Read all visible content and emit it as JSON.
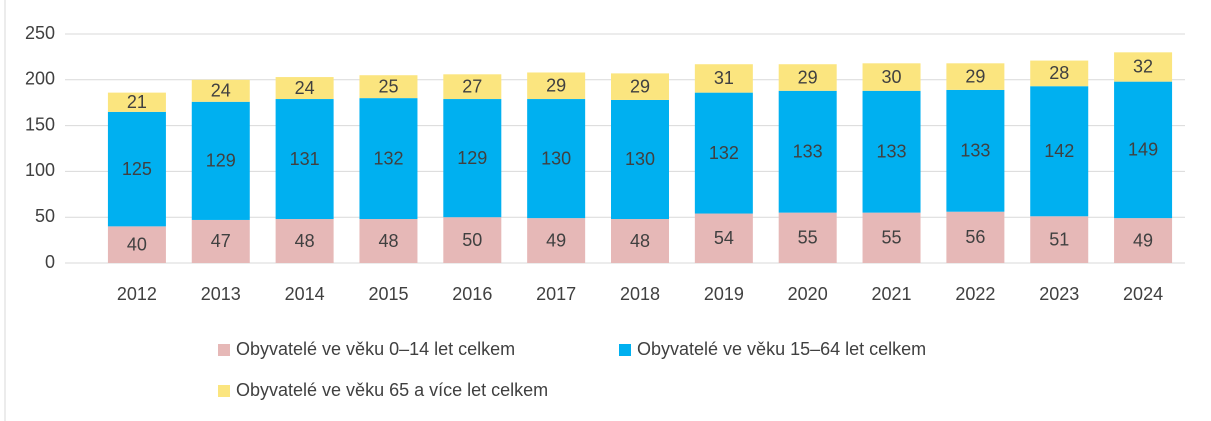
{
  "chart_data": {
    "type": "stacked_bar",
    "categories": [
      "2012",
      "2013",
      "2014",
      "2015",
      "2016",
      "2017",
      "2018",
      "2019",
      "2020",
      "2021",
      "2022",
      "2023",
      "2024"
    ],
    "series": [
      {
        "name": "Obyvatelé ve věku 0–14 let celkem",
        "color": "#e6b8b7",
        "values": [
          40,
          47,
          48,
          48,
          50,
          49,
          48,
          54,
          55,
          55,
          56,
          51,
          49
        ]
      },
      {
        "name": "Obyvatelé ve věku 15–64 let celkem",
        "color": "#00b0f0",
        "values": [
          125,
          129,
          131,
          132,
          129,
          130,
          130,
          132,
          133,
          133,
          133,
          142,
          149
        ]
      },
      {
        "name": "Obyvatelé ve věku 65 a více let celkem",
        "color": "#fbe57f",
        "values": [
          21,
          24,
          24,
          25,
          27,
          29,
          29,
          31,
          29,
          30,
          29,
          28,
          32
        ]
      }
    ],
    "ylim": [
      0,
      250
    ],
    "yticks": [
      0,
      50,
      100,
      150,
      200,
      250
    ],
    "grid": true,
    "legend": "bottom"
  }
}
